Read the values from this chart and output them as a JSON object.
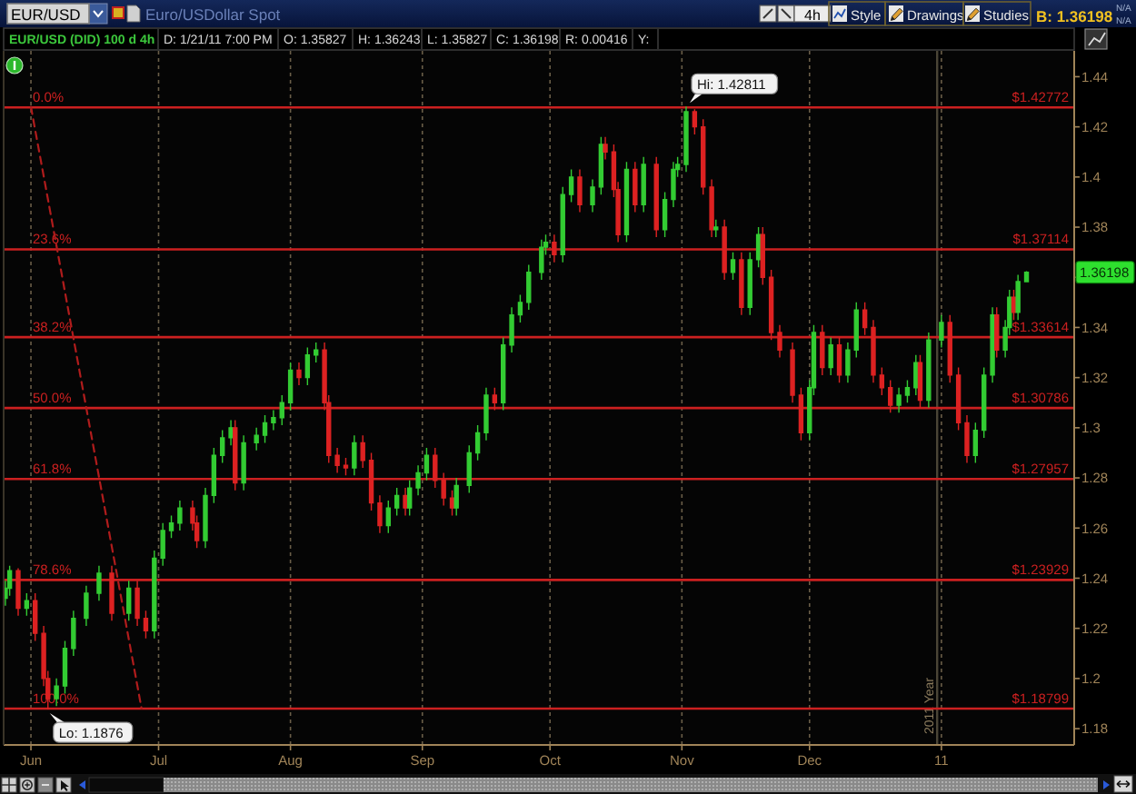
{
  "chart_data": {
    "type": "candlestick",
    "title": "EUR/USD (DID) 100 d 4h",
    "subtitle": "Euro/USDollar Spot",
    "x": [
      "2010-05-26",
      "2010-05-27",
      "2010-05-29",
      "2010-05-31",
      "2010-06-02",
      "2010-06-04",
      "2010-06-05",
      "2010-06-07",
      "2010-06-09",
      "2010-06-11",
      "2010-06-14",
      "2010-06-17",
      "2010-06-20",
      "2010-06-24",
      "2010-06-26",
      "2010-06-28",
      "2010-06-30",
      "2010-07-02",
      "2010-07-04",
      "2010-07-06",
      "2010-07-09",
      "2010-07-10",
      "2010-07-12",
      "2010-07-14",
      "2010-07-16",
      "2010-07-18",
      "2010-07-19",
      "2010-07-21",
      "2010-07-24",
      "2010-07-26",
      "2010-07-28",
      "2010-07-30",
      "2010-08-01",
      "2010-08-03",
      "2010-08-05",
      "2010-08-07",
      "2010-08-09",
      "2010-08-10",
      "2010-08-12",
      "2010-08-14",
      "2010-08-16",
      "2010-08-18",
      "2010-08-20",
      "2010-08-22",
      "2010-08-24",
      "2010-08-26",
      "2010-08-28",
      "2010-08-29",
      "2010-08-31",
      "2010-09-02",
      "2010-09-04",
      "2010-09-06",
      "2010-09-08",
      "2010-09-09",
      "2010-09-12",
      "2010-09-14",
      "2010-09-16",
      "2010-09-18",
      "2010-09-20",
      "2010-09-22",
      "2010-09-24",
      "2010-09-26",
      "2010-09-29",
      "2010-09-30",
      "2010-10-02",
      "2010-10-04",
      "2010-10-06",
      "2010-10-08",
      "2010-10-11",
      "2010-10-13",
      "2010-10-14",
      "2010-10-16",
      "2010-10-17",
      "2010-10-19",
      "2010-10-21",
      "2010-10-23",
      "2010-10-26",
      "2010-10-28",
      "2010-10-30",
      "2010-10-31",
      "2010-11-02",
      "2010-11-04",
      "2010-11-06",
      "2010-11-08",
      "2010-11-09",
      "2010-11-11",
      "2010-11-13",
      "2010-11-15",
      "2010-11-17",
      "2010-11-19",
      "2010-11-20",
      "2010-11-22",
      "2010-11-24",
      "2010-11-27",
      "2010-11-29",
      "2010-12-01",
      "2010-12-02",
      "2010-12-04",
      "2010-12-06",
      "2010-12-08",
      "2010-12-10",
      "2010-12-12",
      "2010-12-14",
      "2010-12-16",
      "2010-12-18",
      "2010-12-20",
      "2010-12-22",
      "2010-12-24",
      "2010-12-26",
      "2010-12-27",
      "2010-12-29",
      "2011-01-01",
      "2011-01-03",
      "2011-01-05",
      "2011-01-07",
      "2011-01-09",
      "2011-01-11",
      "2011-01-13",
      "2011-01-14",
      "2011-01-16",
      "2011-01-17",
      "2011-01-18",
      "2011-01-19",
      "2011-01-21"
    ],
    "ohlc": [
      [
        1.232,
        1.239,
        1.229,
        1.236
      ],
      [
        1.236,
        1.245,
        1.233,
        1.243
      ],
      [
        1.243,
        1.244,
        1.225,
        1.228
      ],
      [
        1.228,
        1.234,
        1.225,
        1.231
      ],
      [
        1.231,
        1.234,
        1.215,
        1.218
      ],
      [
        1.218,
        1.221,
        1.197,
        1.2
      ],
      [
        1.2,
        1.203,
        1.1876,
        1.192
      ],
      [
        1.192,
        1.2,
        1.189,
        1.197
      ],
      [
        1.197,
        1.215,
        1.194,
        1.212
      ],
      [
        1.212,
        1.227,
        1.209,
        1.224
      ],
      [
        1.224,
        1.237,
        1.221,
        1.234
      ],
      [
        1.234,
        1.245,
        1.231,
        1.242
      ],
      [
        1.242,
        1.245,
        1.223,
        1.226
      ],
      [
        1.226,
        1.239,
        1.223,
        1.236
      ],
      [
        1.236,
        1.239,
        1.221,
        1.224
      ],
      [
        1.224,
        1.227,
        1.216,
        1.219
      ],
      [
        1.219,
        1.251,
        1.216,
        1.248
      ],
      [
        1.248,
        1.262,
        1.245,
        1.259
      ],
      [
        1.259,
        1.265,
        1.256,
        1.262
      ],
      [
        1.262,
        1.271,
        1.259,
        1.268
      ],
      [
        1.268,
        1.271,
        1.259,
        1.262
      ],
      [
        1.262,
        1.265,
        1.252,
        1.255
      ],
      [
        1.255,
        1.276,
        1.252,
        1.273
      ],
      [
        1.273,
        1.292,
        1.27,
        1.289
      ],
      [
        1.289,
        1.299,
        1.286,
        1.296
      ],
      [
        1.296,
        1.303,
        1.293,
        1.3
      ],
      [
        1.3,
        1.303,
        1.275,
        1.278
      ],
      [
        1.278,
        1.297,
        1.275,
        1.294
      ],
      [
        1.294,
        1.3,
        1.291,
        1.297
      ],
      [
        1.297,
        1.305,
        1.294,
        1.302
      ],
      [
        1.302,
        1.307,
        1.299,
        1.304
      ],
      [
        1.304,
        1.313,
        1.301,
        1.31
      ],
      [
        1.31,
        1.326,
        1.307,
        1.323
      ],
      [
        1.323,
        1.326,
        1.317,
        1.32
      ],
      [
        1.32,
        1.332,
        1.317,
        1.329
      ],
      [
        1.329,
        1.334,
        1.326,
        1.331
      ],
      [
        1.331,
        1.334,
        1.307,
        1.31
      ],
      [
        1.31,
        1.313,
        1.286,
        1.289
      ],
      [
        1.289,
        1.292,
        1.282,
        1.285
      ],
      [
        1.285,
        1.288,
        1.281,
        1.284
      ],
      [
        1.284,
        1.297,
        1.281,
        1.294
      ],
      [
        1.294,
        1.297,
        1.284,
        1.287
      ],
      [
        1.287,
        1.29,
        1.267,
        1.27
      ],
      [
        1.27,
        1.273,
        1.258,
        1.261
      ],
      [
        1.261,
        1.271,
        1.258,
        1.268
      ],
      [
        1.268,
        1.276,
        1.265,
        1.273
      ],
      [
        1.273,
        1.276,
        1.265,
        1.268
      ],
      [
        1.268,
        1.279,
        1.265,
        1.276
      ],
      [
        1.276,
        1.285,
        1.273,
        1.282
      ],
      [
        1.282,
        1.292,
        1.279,
        1.289
      ],
      [
        1.289,
        1.292,
        1.276,
        1.279
      ],
      [
        1.279,
        1.282,
        1.269,
        1.272
      ],
      [
        1.272,
        1.275,
        1.265,
        1.268
      ],
      [
        1.268,
        1.28,
        1.265,
        1.277
      ],
      [
        1.277,
        1.293,
        1.274,
        1.29
      ],
      [
        1.29,
        1.301,
        1.287,
        1.298
      ],
      [
        1.298,
        1.316,
        1.295,
        1.313
      ],
      [
        1.313,
        1.316,
        1.307,
        1.31
      ],
      [
        1.31,
        1.336,
        1.307,
        1.333
      ],
      [
        1.333,
        1.348,
        1.33,
        1.345
      ],
      [
        1.345,
        1.353,
        1.342,
        1.35
      ],
      [
        1.35,
        1.365,
        1.347,
        1.362
      ],
      [
        1.362,
        1.375,
        1.359,
        1.372
      ],
      [
        1.372,
        1.377,
        1.369,
        1.374
      ],
      [
        1.374,
        1.377,
        1.366,
        1.369
      ],
      [
        1.369,
        1.396,
        1.366,
        1.393
      ],
      [
        1.393,
        1.403,
        1.39,
        1.4
      ],
      [
        1.4,
        1.403,
        1.386,
        1.389
      ],
      [
        1.389,
        1.399,
        1.386,
        1.396
      ],
      [
        1.396,
        1.416,
        1.393,
        1.413
      ],
      [
        1.413,
        1.416,
        1.407,
        1.41
      ],
      [
        1.41,
        1.413,
        1.392,
        1.395
      ],
      [
        1.395,
        1.398,
        1.374,
        1.377
      ],
      [
        1.377,
        1.406,
        1.374,
        1.403
      ],
      [
        1.403,
        1.406,
        1.386,
        1.389
      ],
      [
        1.389,
        1.408,
        1.386,
        1.405
      ],
      [
        1.405,
        1.408,
        1.376,
        1.379
      ],
      [
        1.379,
        1.394,
        1.376,
        1.391
      ],
      [
        1.391,
        1.406,
        1.388,
        1.403
      ],
      [
        1.403,
        1.408,
        1.4,
        1.405
      ],
      [
        1.405,
        1.42811,
        1.402,
        1.426
      ],
      [
        1.426,
        1.427,
        1.417,
        1.42
      ],
      [
        1.42,
        1.423,
        1.393,
        1.396
      ],
      [
        1.396,
        1.399,
        1.376,
        1.379
      ],
      [
        1.379,
        1.383,
        1.376,
        1.38
      ],
      [
        1.38,
        1.383,
        1.359,
        1.362
      ],
      [
        1.362,
        1.37,
        1.359,
        1.367
      ],
      [
        1.367,
        1.37,
        1.345,
        1.348
      ],
      [
        1.348,
        1.37,
        1.345,
        1.367
      ],
      [
        1.367,
        1.38,
        1.364,
        1.377
      ],
      [
        1.377,
        1.38,
        1.357,
        1.36
      ],
      [
        1.36,
        1.363,
        1.335,
        1.338
      ],
      [
        1.338,
        1.341,
        1.328,
        1.331
      ],
      [
        1.331,
        1.334,
        1.31,
        1.313
      ],
      [
        1.313,
        1.316,
        1.295,
        1.298
      ],
      [
        1.298,
        1.319,
        1.295,
        1.316
      ],
      [
        1.316,
        1.341,
        1.313,
        1.338
      ],
      [
        1.338,
        1.341,
        1.321,
        1.324
      ],
      [
        1.324,
        1.336,
        1.321,
        1.333
      ],
      [
        1.333,
        1.336,
        1.318,
        1.321
      ],
      [
        1.321,
        1.334,
        1.318,
        1.331
      ],
      [
        1.331,
        1.35,
        1.328,
        1.347
      ],
      [
        1.347,
        1.35,
        1.337,
        1.34
      ],
      [
        1.34,
        1.343,
        1.318,
        1.321
      ],
      [
        1.321,
        1.324,
        1.313,
        1.316
      ],
      [
        1.316,
        1.319,
        1.306,
        1.309
      ],
      [
        1.309,
        1.316,
        1.306,
        1.313
      ],
      [
        1.313,
        1.319,
        1.31,
        1.316
      ],
      [
        1.316,
        1.329,
        1.313,
        1.326
      ],
      [
        1.326,
        1.329,
        1.308,
        1.311
      ],
      [
        1.311,
        1.338,
        1.308,
        1.335
      ],
      [
        1.335,
        1.345,
        1.332,
        1.342
      ],
      [
        1.342,
        1.345,
        1.318,
        1.321
      ],
      [
        1.321,
        1.324,
        1.299,
        1.302
      ],
      [
        1.302,
        1.305,
        1.286,
        1.289
      ],
      [
        1.289,
        1.302,
        1.286,
        1.299
      ],
      [
        1.299,
        1.324,
        1.296,
        1.321
      ],
      [
        1.321,
        1.348,
        1.318,
        1.345
      ],
      [
        1.345,
        1.348,
        1.328,
        1.331
      ],
      [
        1.331,
        1.343,
        1.328,
        1.34
      ],
      [
        1.34,
        1.355,
        1.337,
        1.352
      ],
      [
        1.352,
        1.355,
        1.343,
        1.346
      ],
      [
        1.346,
        1.361,
        1.343,
        1.3583
      ],
      [
        1.35827,
        1.36243,
        1.35827,
        1.36198
      ]
    ],
    "colors": [
      "#33cc33",
      "#33cc33",
      "#dd2222",
      "#33cc33",
      "#dd2222",
      "#dd2222",
      "#dd2222",
      "#33cc33",
      "#33cc33",
      "#33cc33",
      "#33cc33",
      "#33cc33",
      "#dd2222",
      "#33cc33",
      "#dd2222",
      "#dd2222",
      "#33cc33",
      "#33cc33",
      "#33cc33",
      "#33cc33",
      "#dd2222",
      "#dd2222",
      "#33cc33",
      "#33cc33",
      "#33cc33",
      "#33cc33",
      "#dd2222",
      "#33cc33",
      "#33cc33",
      "#33cc33",
      "#33cc33",
      "#33cc33",
      "#33cc33",
      "#dd2222",
      "#33cc33",
      "#33cc33",
      "#dd2222",
      "#dd2222",
      "#dd2222",
      "#dd2222",
      "#33cc33",
      "#dd2222",
      "#dd2222",
      "#dd2222",
      "#33cc33",
      "#33cc33",
      "#dd2222",
      "#33cc33",
      "#33cc33",
      "#33cc33",
      "#dd2222",
      "#dd2222",
      "#dd2222",
      "#33cc33",
      "#33cc33",
      "#33cc33",
      "#33cc33",
      "#dd2222",
      "#33cc33",
      "#33cc33",
      "#33cc33",
      "#33cc33",
      "#33cc33",
      "#33cc33",
      "#dd2222",
      "#33cc33",
      "#33cc33",
      "#dd2222",
      "#33cc33",
      "#33cc33",
      "#dd2222",
      "#dd2222",
      "#dd2222",
      "#33cc33",
      "#dd2222",
      "#33cc33",
      "#dd2222",
      "#33cc33",
      "#33cc33",
      "#33cc33",
      "#33cc33",
      "#dd2222",
      "#dd2222",
      "#dd2222",
      "#33cc33",
      "#dd2222",
      "#33cc33",
      "#dd2222",
      "#33cc33",
      "#33cc33",
      "#dd2222",
      "#dd2222",
      "#dd2222",
      "#dd2222",
      "#dd2222",
      "#33cc33",
      "#33cc33",
      "#dd2222",
      "#33cc33",
      "#dd2222",
      "#33cc33",
      "#33cc33",
      "#dd2222",
      "#dd2222",
      "#dd2222",
      "#dd2222",
      "#33cc33",
      "#33cc33",
      "#33cc33",
      "#dd2222",
      "#33cc33",
      "#33cc33",
      "#dd2222",
      "#dd2222",
      "#dd2222",
      "#33cc33",
      "#33cc33",
      "#33cc33",
      "#dd2222",
      "#33cc33",
      "#33cc33",
      "#dd2222",
      "#33cc33",
      "#33cc33"
    ],
    "series": [
      {
        "type": "line",
        "x": [
          "2010-06-01",
          "2010-06-27"
        ],
        "values": [
          1.428,
          1.188
        ],
        "color": "#b01c1c",
        "line_style": "dashed"
      }
    ],
    "xlim": [
      "2010-05-25T14:00",
      "2011-02-01T05:00"
    ],
    "xticks": [
      {
        "value": "2010-06-01",
        "label": "Jun"
      },
      {
        "value": "2010-07-01",
        "label": "Jul"
      },
      {
        "value": "2010-08-01",
        "label": "Aug"
      },
      {
        "value": "2010-09-01",
        "label": "Sep"
      },
      {
        "value": "2010-10-01",
        "label": "Oct"
      },
      {
        "value": "2010-11-01",
        "label": "Nov"
      },
      {
        "value": "2010-12-01",
        "label": "Dec"
      },
      {
        "value": "2011-01-01",
        "label": "11"
      }
    ],
    "ylim": [
      1.1735,
      1.4503
    ],
    "yticks": [
      1.18,
      1.2,
      1.22,
      1.24,
      1.26,
      1.28,
      1.3,
      1.32,
      1.34,
      {
        "value": 1.36,
        "label": null
      },
      1.38,
      1.4,
      1.42,
      1.44
    ],
    "grid": "x",
    "ref_lines": [
      {
        "axis": "y",
        "value": 1.42772,
        "label": "$1.42772",
        "color": "#cc2020"
      },
      {
        "axis": "y",
        "value": 1.37114,
        "label": "$1.37114",
        "color": "#cc2020"
      },
      {
        "axis": "y",
        "value": 1.33614,
        "label": "$1.33614",
        "color": "#cc2020"
      },
      {
        "axis": "y",
        "value": 1.30786,
        "label": "$1.30786",
        "color": "#cc2020"
      },
      {
        "axis": "y",
        "value": 1.27957,
        "label": "$1.27957",
        "color": "#cc2020"
      },
      {
        "axis": "y",
        "value": 1.23929,
        "label": "$1.23929",
        "color": "#cc2020"
      },
      {
        "axis": "y",
        "value": 1.18799,
        "label": "$1.18799",
        "color": "#cc2020"
      },
      {
        "axis": "x",
        "value": "2010-12-31",
        "label": "2011 Year",
        "color": "#4a4536"
      }
    ],
    "annotations": [
      "EUR/USD",
      "4h",
      "Style",
      "Drawings",
      "Studies",
      "B: 1.36198",
      "N/A",
      "N/A",
      "D: 1/21/11 7:00 PM",
      "O: 1.35827",
      "H: 1.36243",
      "L: 1.35827",
      "C: 1.36198",
      "R: 0.00416",
      "Y:",
      {
        "text": "Hi: 1.42811",
        "x": "2010-11-02",
        "y": 1.42811
      },
      {
        "text": "Lo: 1.1876",
        "x": "2010-06-05",
        "y": 1.1876
      },
      {
        "text": "1.36198",
        "y": 1.36198
      },
      {
        "text": "0.0%",
        "y": 1.42772
      },
      {
        "text": "23.6%",
        "y": 1.37114
      },
      {
        "text": "38.2%",
        "y": 1.33614
      },
      {
        "text": "50.0%",
        "y": 1.30786
      },
      {
        "text": "61.8%",
        "y": 1.27957
      },
      {
        "text": "78.6%",
        "y": 1.23929
      },
      {
        "text": "100.0%",
        "y": 1.18799
      }
    ]
  }
}
